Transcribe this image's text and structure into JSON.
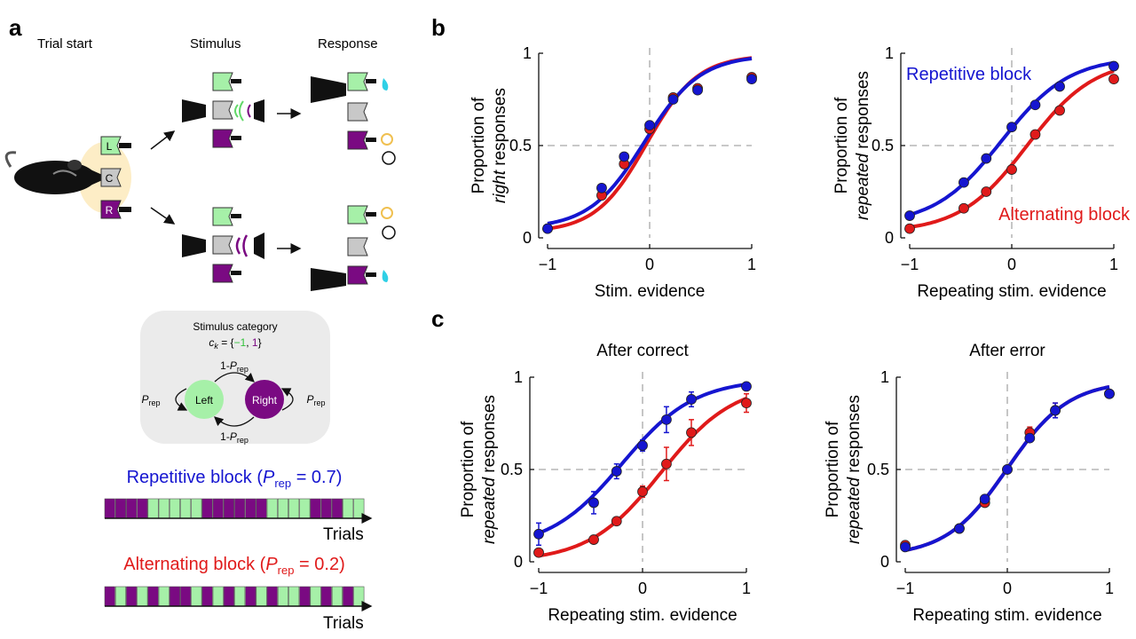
{
  "panel_labels": {
    "a": "a",
    "b": "b",
    "c": "c"
  },
  "schematic": {
    "phase_labels": [
      "Trial start",
      "Stimulus",
      "Response"
    ],
    "port_letters": {
      "left": "L",
      "center": "C",
      "right": "R"
    },
    "transition": {
      "title": "Stimulus category",
      "category_eq_prefix": "c",
      "category_eq_sub": "k",
      "category_eq_mid": " = {",
      "category_neg": "−1",
      "category_sep": ", ",
      "category_pos": "1",
      "category_eq_end": "}",
      "left_state": "Left",
      "right_state": "Right",
      "p_main": "P",
      "p_sub": "rep",
      "one_minus": "1-"
    },
    "blocks": [
      {
        "label_prefix": "Repetitive block (",
        "p": "P",
        "p_sub": "rep",
        "label_suffix": " = 0.7)",
        "color": "#1515d0",
        "sequence": [
          "R",
          "R",
          "R",
          "R",
          "L",
          "L",
          "L",
          "L",
          "L",
          "R",
          "R",
          "R",
          "R",
          "R",
          "R",
          "L",
          "L",
          "L",
          "L",
          "R",
          "R",
          "R",
          "L",
          "L"
        ]
      },
      {
        "label_prefix": "Alternating block (",
        "p": "P",
        "p_sub": "rep",
        "label_suffix": " = 0.2)",
        "color": "#e01a1a",
        "sequence": [
          "R",
          "L",
          "R",
          "L",
          "R",
          "L",
          "R",
          "R",
          "L",
          "R",
          "L",
          "R",
          "L",
          "R",
          "L",
          "R",
          "L",
          "L",
          "R",
          "L",
          "R",
          "L",
          "R",
          "L"
        ]
      }
    ],
    "trials_label": "Trials",
    "colors": {
      "left": "#a6f0a8",
      "right": "#7a0a82",
      "center": "#c8c8c8",
      "water": "#2fd0e6",
      "light": "#f0c050"
    }
  },
  "chart_data": [
    {
      "type": "scatter",
      "panel": "b",
      "title": "",
      "xlabel": "Stim. evidence",
      "ylabel_line1": "Proportion of",
      "ylabel_line2_em": "right",
      "ylabel_line2_rest": " responses",
      "xlim": [
        -1,
        1
      ],
      "ylim": [
        0,
        1
      ],
      "xticks": [
        -1,
        0,
        1
      ],
      "xtick_labels": [
        "−1",
        "0",
        "1"
      ],
      "yticks": [
        0,
        0.5,
        1
      ],
      "ytick_labels": [
        "0",
        "0.5",
        "1"
      ],
      "series": [
        {
          "color": "#e01a1a",
          "x": [
            -1,
            -0.47,
            -0.25,
            0,
            0.23,
            0.47,
            1
          ],
          "y": [
            0.05,
            0.23,
            0.4,
            0.59,
            0.76,
            0.81,
            0.87
          ],
          "fit": {
            "mu": -0.03,
            "s": 0.25,
            "lo": 0.03,
            "hi": 0.99
          }
        },
        {
          "color": "#1515d0",
          "x": [
            -1,
            -0.47,
            -0.25,
            0,
            0.23,
            0.47,
            1
          ],
          "y": [
            0.05,
            0.27,
            0.44,
            0.61,
            0.75,
            0.8,
            0.86
          ],
          "fit": {
            "mu": -0.05,
            "s": 0.27,
            "lo": 0.05,
            "hi": 0.99
          }
        }
      ],
      "legend": []
    },
    {
      "type": "scatter",
      "panel": "b",
      "title": "",
      "xlabel": "Repeating stim. evidence",
      "ylabel_line1": "Proportion of",
      "ylabel_line2_em": "repeated",
      "ylabel_line2_rest": " responses",
      "xlim": [
        -1,
        1
      ],
      "ylim": [
        0,
        1
      ],
      "xticks": [
        -1,
        0,
        1
      ],
      "xtick_labels": [
        "−1",
        "0",
        "1"
      ],
      "yticks": [
        0,
        0.5,
        1
      ],
      "ytick_labels": [
        "0",
        "0.5",
        "1"
      ],
      "series": [
        {
          "name": "Repetitive block",
          "color": "#1515d0",
          "x": [
            -1,
            -0.47,
            -0.25,
            0,
            0.23,
            0.47,
            1
          ],
          "y": [
            0.12,
            0.3,
            0.43,
            0.6,
            0.72,
            0.82,
            0.93
          ],
          "fit": {
            "mu": -0.1,
            "s": 0.33,
            "lo": 0.07,
            "hi": 0.98
          }
        },
        {
          "name": "Alternating block",
          "color": "#e01a1a",
          "x": [
            -1,
            -0.47,
            -0.25,
            0,
            0.23,
            0.47,
            1
          ],
          "y": [
            0.05,
            0.16,
            0.25,
            0.37,
            0.56,
            0.69,
            0.86
          ],
          "fit": {
            "mu": 0.15,
            "s": 0.33,
            "lo": 0.03,
            "hi": 0.97
          }
        }
      ],
      "legend": [
        {
          "text": "Repetitive block",
          "color": "#1515d0",
          "pos": "top-left"
        },
        {
          "text": "Alternating block",
          "color": "#e01a1a",
          "pos": "bottom-right"
        }
      ]
    },
    {
      "type": "scatter",
      "panel": "c",
      "title": "After correct",
      "xlabel": "Repeating stim. evidence",
      "ylabel_line1": "Proportion of",
      "ylabel_line2_em": "repeated",
      "ylabel_line2_rest": " responses",
      "xlim": [
        -1,
        1
      ],
      "ylim": [
        0,
        1
      ],
      "xticks": [
        -1,
        0,
        1
      ],
      "xtick_labels": [
        "−1",
        "0",
        "1"
      ],
      "yticks": [
        0,
        0.5,
        1
      ],
      "ytick_labels": [
        "0",
        "0.5",
        "1"
      ],
      "series": [
        {
          "color": "#e01a1a",
          "x": [
            -1,
            -0.47,
            -0.25,
            0,
            0.23,
            0.47,
            1
          ],
          "y": [
            0.05,
            0.12,
            0.22,
            0.38,
            0.53,
            0.7,
            0.86
          ],
          "err": [
            0.0,
            0.0,
            0.02,
            0.03,
            0.09,
            0.07,
            0.05
          ],
          "fit": {
            "mu": 0.18,
            "s": 0.35,
            "lo": 0.0,
            "hi": 0.97
          }
        },
        {
          "color": "#1515d0",
          "x": [
            -1,
            -0.47,
            -0.25,
            0,
            0.23,
            0.47,
            1
          ],
          "y": [
            0.15,
            0.32,
            0.49,
            0.63,
            0.77,
            0.88,
            0.95
          ],
          "err": [
            0.06,
            0.06,
            0.04,
            0.03,
            0.07,
            0.04,
            0.0
          ],
          "fit": {
            "mu": -0.2,
            "s": 0.35,
            "lo": 0.07,
            "hi": 0.99
          }
        }
      ],
      "legend": []
    },
    {
      "type": "scatter",
      "panel": "c",
      "title": "After error",
      "xlabel": "Repeating stim. evidence",
      "ylabel_line1": "Proportion of",
      "ylabel_line2_em": "repeated",
      "ylabel_line2_rest": " responses",
      "xlim": [
        -1,
        1
      ],
      "ylim": [
        0,
        1
      ],
      "xticks": [
        -1,
        0,
        1
      ],
      "xtick_labels": [
        "−1",
        "0",
        "1"
      ],
      "yticks": [
        0,
        0.5,
        1
      ],
      "ytick_labels": [
        "0",
        "0.5",
        "1"
      ],
      "series": [
        {
          "color": "#e01a1a",
          "x": [
            -1,
            -0.47,
            -0.22,
            0,
            0.22,
            0.47,
            1
          ],
          "y": [
            0.09,
            0.18,
            0.32,
            0.5,
            0.7,
            0.82,
            0.91
          ],
          "err": [
            0.0,
            0.0,
            0.02,
            0.02,
            0.03,
            0.04,
            0.0
          ],
          "fit": {
            "mu": 0.0,
            "s": 0.3,
            "lo": 0.03,
            "hi": 0.98
          }
        },
        {
          "color": "#1515d0",
          "x": [
            -1,
            -0.47,
            -0.22,
            0,
            0.22,
            0.47,
            1
          ],
          "y": [
            0.08,
            0.18,
            0.34,
            0.5,
            0.67,
            0.82,
            0.91
          ],
          "err": [
            0.0,
            0.0,
            0.02,
            0.02,
            0.02,
            0.04,
            0.0
          ],
          "fit": {
            "mu": 0.0,
            "s": 0.3,
            "lo": 0.03,
            "hi": 0.98
          }
        }
      ],
      "legend": []
    }
  ]
}
